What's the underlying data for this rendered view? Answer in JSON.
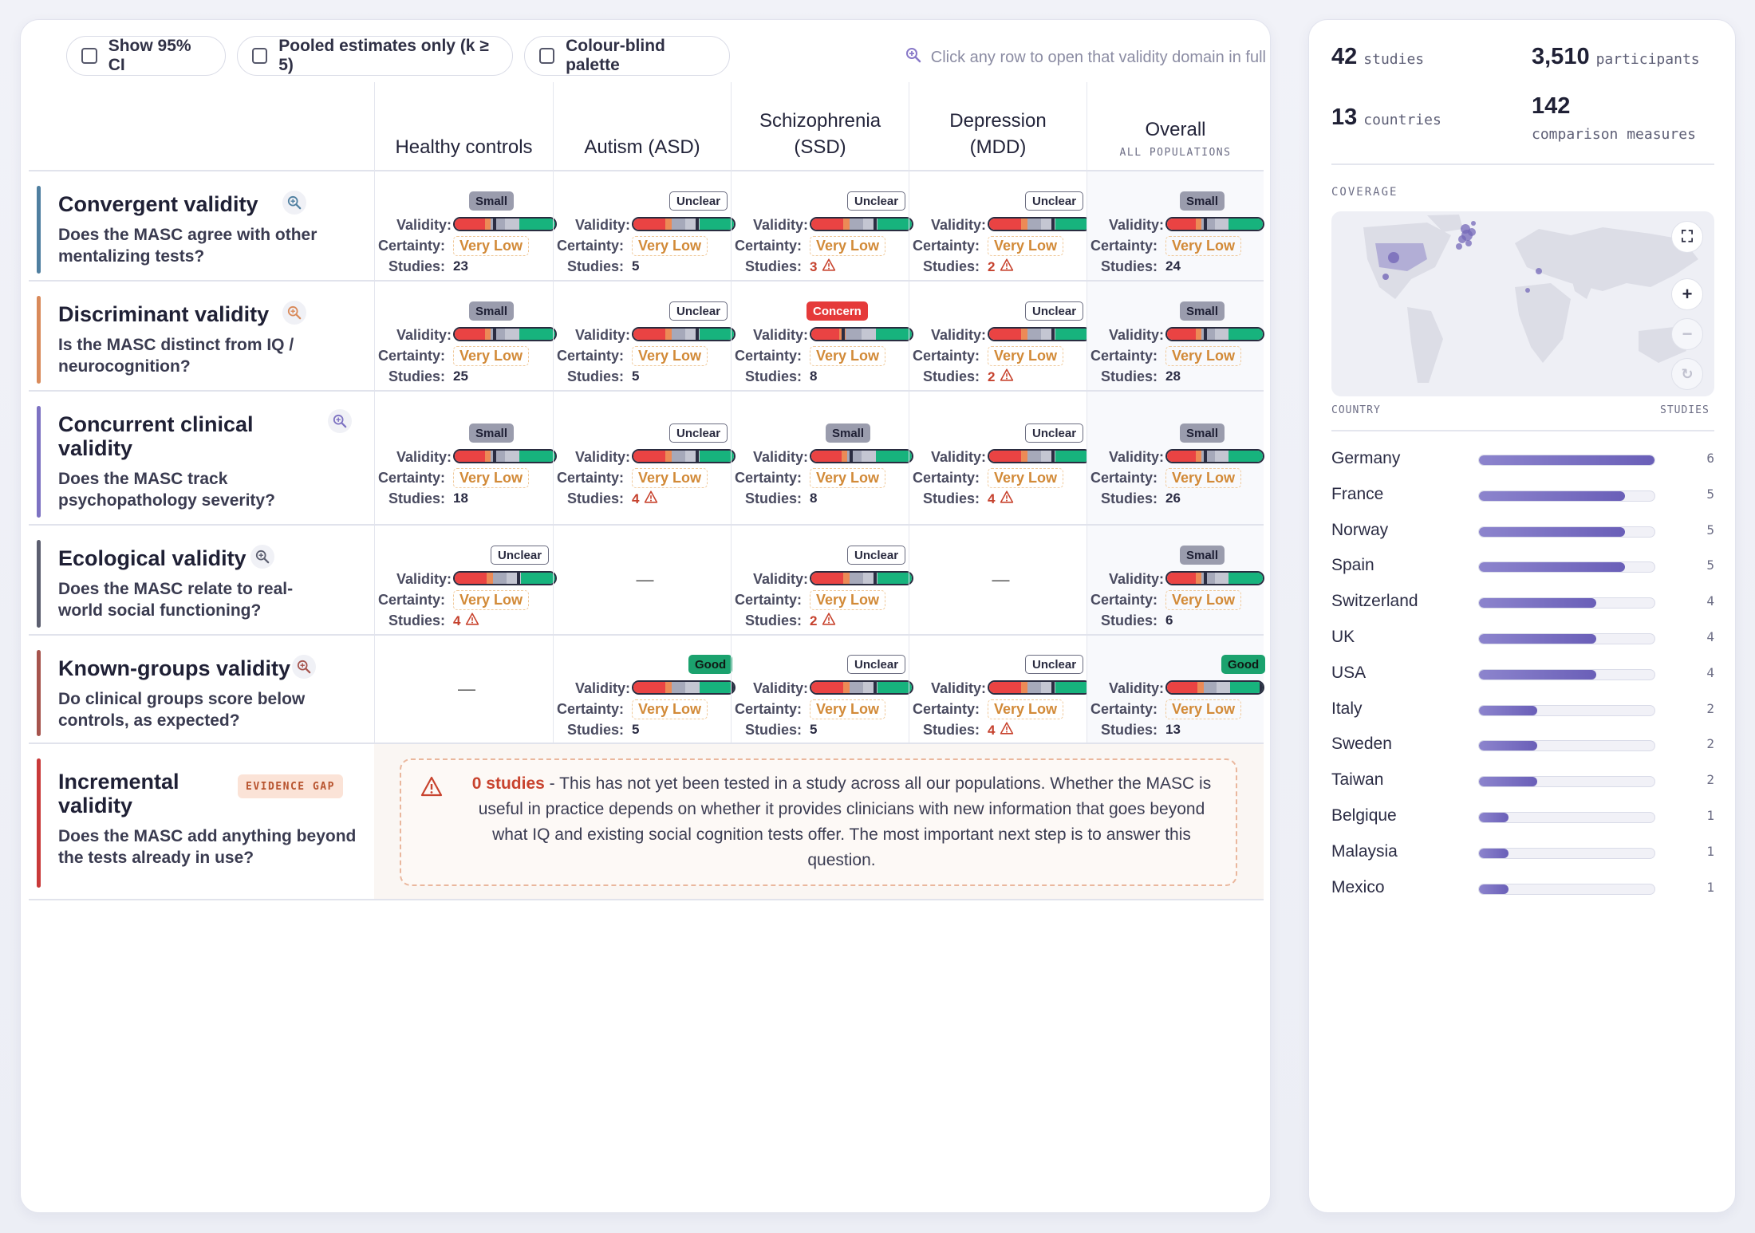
{
  "toolbar": {
    "show_ci": "Show 95% CI",
    "pooled_only": "Pooled estimates only (k ≥ 5)",
    "colour_blind": "Colour-blind palette",
    "hint": "Click any row to open that validity domain in full"
  },
  "columns": [
    {
      "label": "Healthy controls",
      "sub": ""
    },
    {
      "label": "Autism (ASD)",
      "sub": ""
    },
    {
      "label": "Schizophrenia (SSD)",
      "sub": ""
    },
    {
      "label": "Depression (MDD)",
      "sub": ""
    },
    {
      "label": "Overall",
      "sub": "ALL POPULATIONS"
    }
  ],
  "field_labels": {
    "validity": "Validity:",
    "certainty": "Certainty:",
    "studies": "Studies:"
  },
  "domains": [
    {
      "title": "Convergent validity",
      "question": "Does the MASC agree with other mentalizing tests?",
      "color": "#4f7fa0",
      "cells": [
        {
          "badge": "Small",
          "level": "small",
          "certainty": "Very Low",
          "studies": "23",
          "warn": false
        },
        {
          "badge": "Unclear",
          "level": "unclear",
          "certainty": "Very Low",
          "studies": "5",
          "warn": false
        },
        {
          "badge": "Unclear",
          "level": "unclear",
          "certainty": "Very Low",
          "studies": "3",
          "warn": true
        },
        {
          "badge": "Unclear",
          "level": "unclear",
          "certainty": "Very Low",
          "studies": "2",
          "warn": true
        },
        {
          "badge": "Small",
          "level": "small",
          "certainty": "Very Low",
          "studies": "24",
          "warn": false
        }
      ]
    },
    {
      "title": "Discriminant validity",
      "question": "Is the MASC distinct from IQ / neurocognition?",
      "color": "#d98a5a",
      "cells": [
        {
          "badge": "Small",
          "level": "small",
          "certainty": "Very Low",
          "studies": "25",
          "warn": false
        },
        {
          "badge": "Unclear",
          "level": "unclear",
          "certainty": "Very Low",
          "studies": "5",
          "warn": false
        },
        {
          "badge": "Concern",
          "level": "concern",
          "certainty": "Very Low",
          "studies": "8",
          "warn": false
        },
        {
          "badge": "Unclear",
          "level": "unclear",
          "certainty": "Very Low",
          "studies": "2",
          "warn": true
        },
        {
          "badge": "Small",
          "level": "small",
          "certainty": "Very Low",
          "studies": "28",
          "warn": false
        }
      ]
    },
    {
      "title": "Concurrent clinical validity",
      "question": "Does the MASC track psychopathology severity?",
      "color": "#7d72c2",
      "cells": [
        {
          "badge": "Small",
          "level": "small",
          "certainty": "Very Low",
          "studies": "18",
          "warn": false
        },
        {
          "badge": "Unclear",
          "level": "unclear",
          "certainty": "Very Low",
          "studies": "4",
          "warn": true
        },
        {
          "badge": "Small",
          "level": "small",
          "certainty": "Very Low",
          "studies": "8",
          "warn": false
        },
        {
          "badge": "Unclear",
          "level": "unclear",
          "certainty": "Very Low",
          "studies": "4",
          "warn": true
        },
        {
          "badge": "Small",
          "level": "small",
          "certainty": "Very Low",
          "studies": "26",
          "warn": false
        }
      ]
    },
    {
      "title": "Ecological validity",
      "question": "Does the MASC relate to real-world social functioning?",
      "color": "#5c5f70",
      "cells": [
        {
          "badge": "Unclear",
          "level": "unclear",
          "certainty": "Very Low",
          "studies": "4",
          "warn": true
        },
        null,
        {
          "badge": "Unclear",
          "level": "unclear",
          "certainty": "Very Low",
          "studies": "2",
          "warn": true
        },
        null,
        {
          "badge": "Small",
          "level": "small",
          "certainty": "Very Low",
          "studies": "6",
          "warn": false
        }
      ]
    },
    {
      "title": "Known-groups validity",
      "question": "Do clinical groups score below controls, as expected?",
      "color": "#a6544d",
      "cells": [
        null,
        {
          "badge": "Good",
          "level": "good",
          "certainty": "Very Low",
          "studies": "5",
          "warn": false
        },
        {
          "badge": "Unclear",
          "level": "unclear",
          "certainty": "Very Low",
          "studies": "5",
          "warn": false
        },
        {
          "badge": "Unclear",
          "level": "unclear",
          "certainty": "Very Low",
          "studies": "4",
          "warn": true
        },
        {
          "badge": "Good",
          "level": "good",
          "certainty": "Very Low",
          "studies": "13",
          "warn": false
        }
      ]
    }
  ],
  "empty_cell": "—",
  "gap": {
    "title": "Incremental validity",
    "question": "Does the MASC add anything beyond the tests already in use?",
    "badge": "EVIDENCE GAP",
    "strong": "0 studies",
    "text": " - This has not yet been tested in a study across all our populations. Whether the MASC is useful in practice depends on whether it provides clinicians with new information that goes beyond what IQ and existing social cognition tests offer. The most important next step is to answer this question."
  },
  "summary": {
    "studies": {
      "n": "42",
      "unit": "studies"
    },
    "participants": {
      "n": "3,510",
      "unit": "participants"
    },
    "countries": {
      "n": "13",
      "unit": "countries"
    },
    "measures": {
      "n": "142",
      "unit": "comparison measures"
    }
  },
  "coverage": {
    "label": "COVERAGE",
    "country_header": "COUNTRY",
    "studies_header": "STUDIES",
    "max": 6,
    "rows": [
      {
        "country": "Germany",
        "studies": 6
      },
      {
        "country": "France",
        "studies": 5
      },
      {
        "country": "Norway",
        "studies": 5
      },
      {
        "country": "Spain",
        "studies": 5
      },
      {
        "country": "Switzerland",
        "studies": 4
      },
      {
        "country": "UK",
        "studies": 4
      },
      {
        "country": "USA",
        "studies": 4
      },
      {
        "country": "Italy",
        "studies": 2
      },
      {
        "country": "Sweden",
        "studies": 2
      },
      {
        "country": "Taiwan",
        "studies": 2
      },
      {
        "country": "Belgique",
        "studies": 1
      },
      {
        "country": "Malaysia",
        "studies": 1
      },
      {
        "country": "Mexico",
        "studies": 1
      }
    ]
  },
  "map_controls": {
    "fullscreen": "⛶",
    "zoom_in": "+",
    "zoom_out": "−",
    "reset": "↻"
  }
}
